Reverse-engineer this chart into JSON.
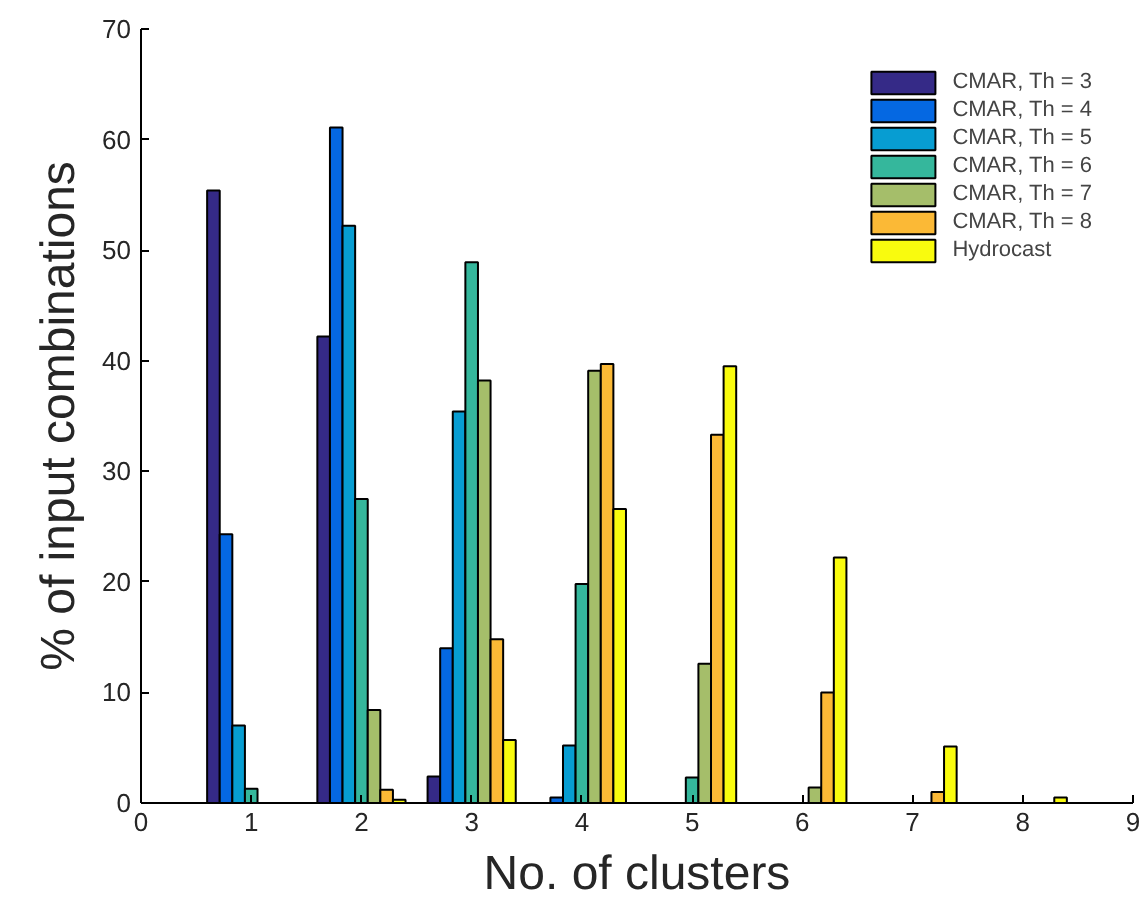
{
  "chart_data": {
    "type": "bar",
    "xlabel": "No. of clusters",
    "ylabel": "% of input combinations",
    "x": [
      1,
      2,
      3,
      4,
      5,
      6,
      7,
      8
    ],
    "xlim": [
      0,
      9
    ],
    "xticks": [
      0,
      1,
      2,
      3,
      4,
      5,
      6,
      7,
      8,
      9
    ],
    "ylim": [
      0,
      70
    ],
    "yticks": [
      0,
      10,
      20,
      30,
      40,
      50,
      60,
      70
    ],
    "grid": false,
    "legend": "top right",
    "series": [
      {
        "name": "CMAR, Th = 3",
        "color": "#352a87",
        "values": [
          55.4,
          42.2,
          2.4,
          0,
          0,
          0,
          0,
          0
        ]
      },
      {
        "name": "CMAR, Th = 4",
        "color": "#0568e2",
        "values": [
          24.3,
          61.1,
          14.0,
          0.5,
          0,
          0,
          0,
          0
        ]
      },
      {
        "name": "CMAR, Th = 5",
        "color": "#079dd2",
        "values": [
          7.0,
          52.2,
          35.4,
          5.2,
          null,
          0,
          0,
          0
        ]
      },
      {
        "name": "CMAR, Th = 6",
        "color": "#35b79c",
        "values": [
          1.3,
          27.5,
          48.9,
          19.8,
          2.3,
          0,
          0,
          0
        ]
      },
      {
        "name": "CMAR, Th = 7",
        "color": "#a5be6a",
        "values": [
          null,
          8.4,
          38.2,
          39.1,
          12.6,
          1.4,
          null,
          0
        ]
      },
      {
        "name": "CMAR, Th = 8",
        "color": "#fbb936",
        "values": [
          0,
          1.2,
          14.8,
          39.7,
          33.3,
          10.0,
          1.0,
          null
        ]
      },
      {
        "name": "Hydrocast",
        "color": "#f9fb0e",
        "values": [
          0,
          0.3,
          5.7,
          26.6,
          39.5,
          22.2,
          5.1,
          0.5
        ]
      }
    ]
  }
}
